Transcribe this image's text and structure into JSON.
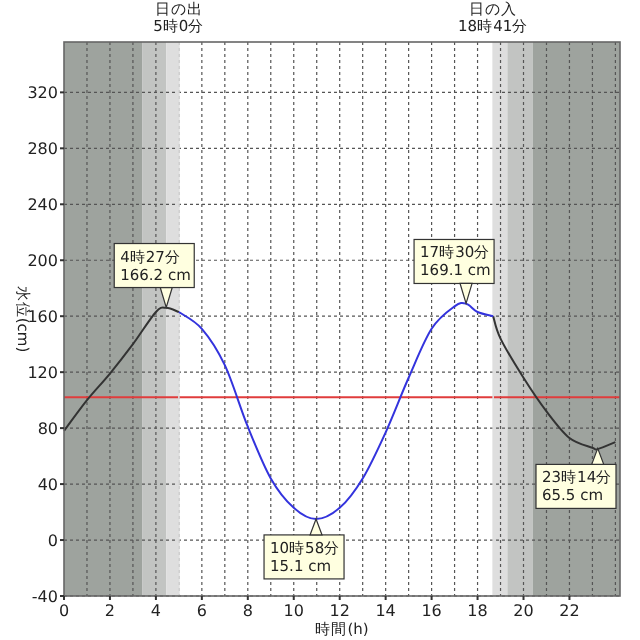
{
  "chart_data": {
    "type": "line",
    "xlabel": "時間(h)",
    "ylabel": "水位(cm)",
    "x": [
      0,
      1,
      2,
      3,
      4,
      4.45,
      5,
      6,
      7,
      8,
      9,
      10,
      10.97,
      12,
      13,
      14,
      15,
      16,
      17,
      17.5,
      18,
      18.68,
      19,
      20,
      21,
      22,
      23,
      23.23,
      24
    ],
    "series": [
      {
        "color": "#333333",
        "values": [
          78,
          100,
          119,
          140,
          163,
          166,
          163,
          null,
          null,
          null,
          null,
          null,
          null,
          null,
          null,
          null,
          null,
          null,
          null,
          null,
          null,
          160,
          144,
          116,
          92,
          73,
          66,
          65,
          70
        ]
      },
      {
        "color": "#3333dd",
        "values": [
          null,
          null,
          null,
          null,
          null,
          null,
          163,
          151,
          125,
          81,
          44,
          23,
          15,
          23,
          44,
          77,
          116,
          151,
          167,
          169,
          163,
          160,
          null,
          null,
          null,
          null,
          null,
          null,
          null
        ]
      }
    ],
    "xlim": [
      0,
      24.2
    ],
    "ylim": [
      -40,
      356
    ],
    "xticks": [
      0,
      2,
      4,
      6,
      8,
      10,
      12,
      14,
      16,
      18,
      20,
      22
    ],
    "yticks": [
      -40,
      0,
      40,
      80,
      120,
      160,
      200,
      240,
      280,
      320
    ],
    "grid": true,
    "bands": [
      {
        "axis": "x",
        "from": 0,
        "to": 3.4,
        "color": "#9ea39e"
      },
      {
        "axis": "x",
        "from": 3.4,
        "to": 4.45,
        "color": "#c2c4c2"
      },
      {
        "axis": "x",
        "from": 4.45,
        "to": 5,
        "color": "#dedede"
      },
      {
        "axis": "x",
        "from": 18.68,
        "to": 19.3,
        "color": "#dedede"
      },
      {
        "axis": "x",
        "from": 19.3,
        "to": 20.4,
        "color": "#c2c4c2"
      },
      {
        "axis": "x",
        "from": 20.4,
        "to": 24.2,
        "color": "#9ea39e"
      }
    ],
    "ref_lines": [
      {
        "axis": "y",
        "value": 102,
        "color": "#e03c3c"
      },
      {
        "axis": "x",
        "value": 5,
        "label": "日の出\n5時0分",
        "color": "#dedede"
      },
      {
        "axis": "x",
        "value": 18.68,
        "label": "日の入\n18時41分",
        "color": "#dedede"
      }
    ],
    "annotations": [
      {
        "text": "4時27分\n166.2 cm",
        "x": 4.45,
        "y": 166.2
      },
      {
        "text": "10時58分\n15.1 cm",
        "x": 10.97,
        "y": 15.1
      },
      {
        "text": "17時30分\n169.1 cm",
        "x": 17.5,
        "y": 169.1
      },
      {
        "text": "23時14分\n65.5 cm",
        "x": 23.23,
        "y": 65.5
      }
    ]
  }
}
